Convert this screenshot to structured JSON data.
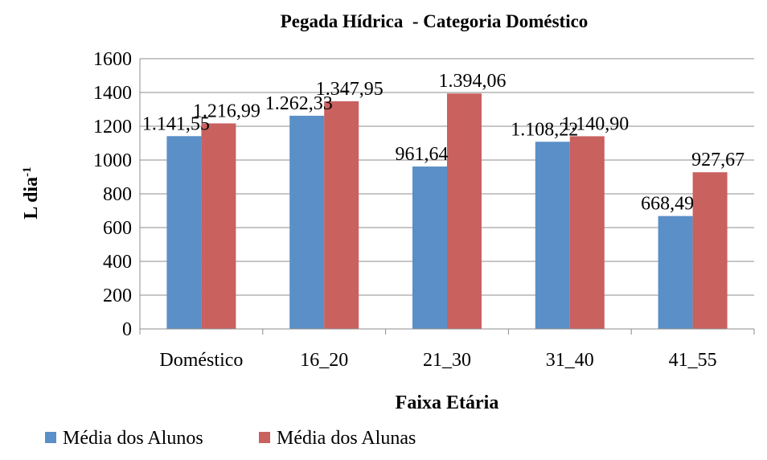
{
  "chart_data": {
    "type": "bar",
    "title": "Pegada Hídrica  - Categoria Doméstico",
    "xlabel": "Faixa Etária",
    "ylabel": "L dia",
    "ylabel_superscript": "-1",
    "ylim": [
      0,
      1600
    ],
    "yticks": [
      "0",
      "200",
      "400",
      "600",
      "800",
      "1000",
      "1200",
      "1400",
      "1600"
    ],
    "grid": true,
    "legend_position": "bottom-left",
    "categories": [
      "Doméstico",
      "16_20",
      "21_30",
      "31_40",
      "41_55"
    ],
    "series": [
      {
        "name": "Média dos Alunos",
        "color": "#5b8fc7",
        "values": [
          1141.55,
          1262.33,
          961.64,
          1108.22,
          668.49
        ],
        "labels": [
          "1.141,55",
          "1.262,33",
          "961,64",
          "1.108,22",
          "668,49"
        ]
      },
      {
        "name": "Média dos Alunas",
        "color": "#c9615f",
        "values": [
          1216.99,
          1347.95,
          1394.06,
          1140.9,
          927.67
        ],
        "labels": [
          "1.216,99",
          "1.347,95",
          "1.394,06",
          "1.140,90",
          "927,67"
        ]
      }
    ]
  }
}
